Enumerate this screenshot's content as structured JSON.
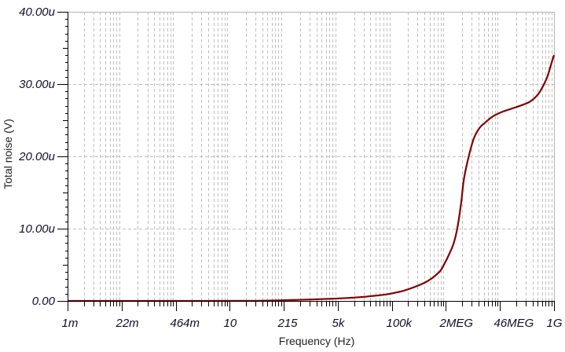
{
  "chart_data": {
    "type": "line",
    "title": "",
    "xlabel": "Frequency (Hz)",
    "ylabel": "Total noise (V)",
    "xscale": "log",
    "xlim": [
      0.001,
      1000000000
    ],
    "ylim": [
      0,
      40
    ],
    "y_unit": "u",
    "x_tick_labels": [
      "1m",
      "22m",
      "464m",
      "10",
      "215",
      "5k",
      "100k",
      "2MEG",
      "46MEG",
      "1G"
    ],
    "y_ticks": [
      0,
      10,
      20,
      30,
      40
    ],
    "y_tick_labels": [
      "0.00",
      "10.00u",
      "20.00u",
      "30.00u",
      "40.00u"
    ],
    "grid": true,
    "legend": null,
    "series": [
      {
        "name": "Total noise",
        "x": [
          0.001,
          1,
          50,
          215,
          1000,
          2860,
          7870,
          15400,
          25500,
          73300,
          150000,
          259000,
          634000,
          1000000,
          1550000,
          2000000,
          2420000,
          3310000,
          4130000,
          5160000,
          5900000,
          7380000,
          10400000,
          14400000,
          19400000,
          30300000,
          55000000,
          116000000,
          243000000,
          380000000,
          513000000,
          692000000,
          865000000,
          1000000000
        ],
        "y": [
          0,
          0,
          0.02,
          0.1,
          0.2,
          0.29,
          0.4,
          0.51,
          0.62,
          0.9,
          1.25,
          1.63,
          2.5,
          3.2,
          4.13,
          5.2,
          6.1,
          7.9,
          10.1,
          13.7,
          16.6,
          19.3,
          22.4,
          23.9,
          24.6,
          25.5,
          26.2,
          26.8,
          27.5,
          28.4,
          29.5,
          31.1,
          32.9,
          34.0
        ]
      }
    ]
  },
  "colors": {
    "curve": "#800000",
    "grid": "#c0c0c0",
    "axis": "#000000",
    "border": "#b4b4b4",
    "label": "#10102a"
  }
}
